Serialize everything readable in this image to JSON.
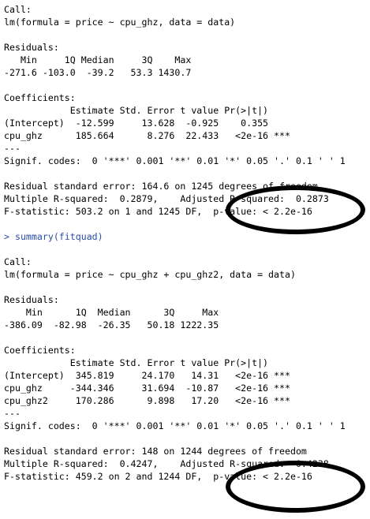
{
  "console": {
    "lines": [
      "Call:",
      "lm(formula = price ~ cpu_ghz, data = data)",
      "",
      "Residuals:",
      "   Min     1Q Median     3Q    Max",
      "-271.6 -103.0  -39.2   53.3 1430.7",
      "",
      "Coefficients:",
      "            Estimate Std. Error t value Pr(>|t|)",
      "(Intercept)  -12.599     13.628  -0.925    0.355",
      "cpu_ghz      185.664      8.276  22.433   <2e-16 ***",
      "---",
      "Signif. codes:  0 '***' 0.001 '**' 0.01 '*' 0.05 '.' 0.1 ' ' 1",
      "",
      "Residual standard error: 164.6 on 1245 degrees of freedom",
      "Multiple R-squared:  0.2879,    Adjusted R-squared:  0.2873",
      "F-statistic: 503.2 on 1 and 1245 DF,  p-value: < 2.2e-16",
      "",
      "> summary(fitquad)",
      "",
      "Call:",
      "lm(formula = price ~ cpu_ghz + cpu_ghz2, data = data)",
      "",
      "Residuals:",
      "    Min      1Q  Median      3Q     Max",
      "-386.09  -82.98  -26.35   50.18 1222.35",
      "",
      "Coefficients:",
      "            Estimate Std. Error t value Pr(>|t|)",
      "(Intercept)  345.819     24.170   14.31   <2e-16 ***",
      "cpu_ghz     -344.346     31.694  -10.87   <2e-16 ***",
      "cpu_ghz2     170.286      9.898   17.20   <2e-16 ***",
      "---",
      "Signif. codes:  0 '***' 0.001 '**' 0.01 '*' 0.05 '.' 0.1 ' ' 1",
      "",
      "Residual standard error: 148 on 1244 degrees of freedom",
      "Multiple R-squared:  0.4247,    Adjusted R-squared:  0.4238",
      "F-statistic: 459.2 on 2 and 1244 DF,  p-value: < 2.2e-16"
    ]
  },
  "colors": {
    "text": "#000000",
    "command": "#2a4ea8",
    "background": "#ffffff",
    "annotation": "#000000"
  }
}
